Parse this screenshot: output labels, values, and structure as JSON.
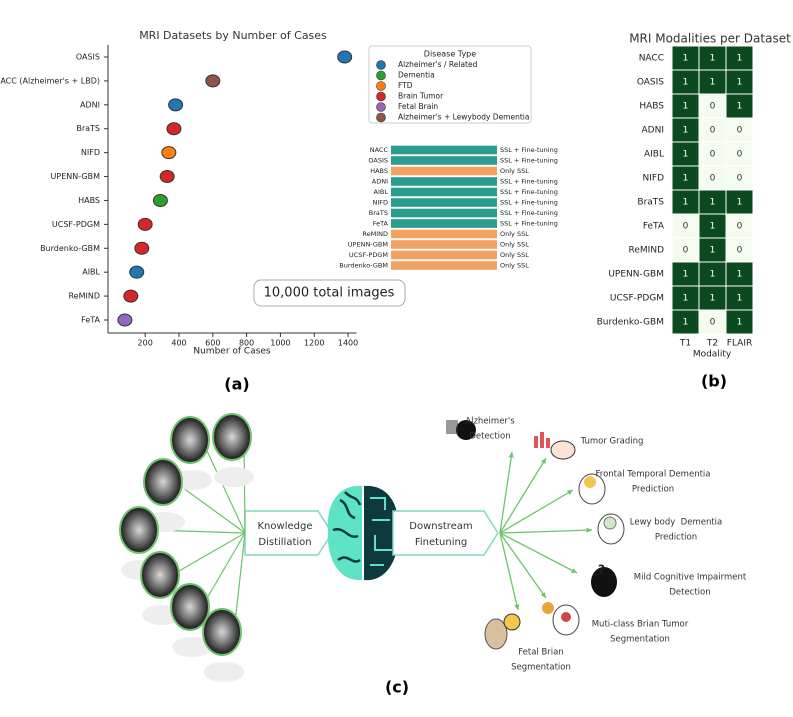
{
  "panel_labels": [
    "(a)",
    "(b)",
    "(c)"
  ],
  "chart_data": [
    {
      "type": "dot",
      "title": "MRI Datasets by Number of Cases",
      "x_label": "Number of Cases",
      "categories": [
        "OASIS",
        "NACC (Alzheimer's + LBD)",
        "ADNI",
        "BraTS",
        "NIFD",
        "UPENN-GBM",
        "HABS",
        "UCSF-PDGM",
        "Burdenko-GBM",
        "AIBL",
        "ReMIND",
        "FeTA"
      ],
      "values": [
        1380,
        600,
        380,
        370,
        340,
        330,
        290,
        200,
        180,
        150,
        115,
        80
      ],
      "colors": [
        "#1f77b4",
        "#8c564b",
        "#1f77b4",
        "#d62728",
        "#ff7f0e",
        "#d62728",
        "#2ca02c",
        "#d62728",
        "#d62728",
        "#1f77b4",
        "#d62728",
        "#9467bd"
      ],
      "xlim": [
        -20,
        1450
      ],
      "xticks": [
        200,
        400,
        600,
        800,
        1000,
        1200,
        1400
      ],
      "legend_title": "Disease Type",
      "legend": [
        {
          "name": "Alzheimer's / Related",
          "color": "#1f77b4"
        },
        {
          "name": "Dementia",
          "color": "#2ca02c"
        },
        {
          "name": "FTD",
          "color": "#ff7f0e"
        },
        {
          "name": "Brain Tumor",
          "color": "#d62728"
        },
        {
          "name": "Fetal Brain",
          "color": "#9467bd"
        },
        {
          "name": "Alzheimer's + Lewybody Dementia",
          "color": "#8c564b"
        }
      ],
      "annotation": "10,000 total images"
    },
    {
      "type": "heatmap",
      "title": "MRI Modalities per Dataset",
      "x_label": "Modality",
      "x": [
        "T1",
        "T2",
        "FLAIR"
      ],
      "categories": [
        "NACC",
        "OASIS",
        "HABS",
        "ADNI",
        "AIBL",
        "NIFD",
        "BraTS",
        "FeTA",
        "ReMIND",
        "UPENN-GBM",
        "UCSF-PDGM",
        "Burdenko-GBM"
      ],
      "values": [
        [
          1,
          1,
          1
        ],
        [
          1,
          1,
          1
        ],
        [
          1,
          0,
          1
        ],
        [
          1,
          0,
          0
        ],
        [
          1,
          0,
          0
        ],
        [
          1,
          0,
          0
        ],
        [
          1,
          1,
          1
        ],
        [
          0,
          1,
          0
        ],
        [
          0,
          1,
          0
        ],
        [
          1,
          1,
          1
        ],
        [
          1,
          1,
          1
        ],
        [
          1,
          0,
          1
        ]
      ],
      "high_color": "#0b4a1f",
      "low_color": "#f4fbf1"
    }
  ],
  "training_modes": {
    "rows": [
      {
        "dataset": "NACC",
        "mode": "SSL + Fine-tuning",
        "color": "#2a9d8f"
      },
      {
        "dataset": "OASIS",
        "mode": "SSL + Fine-tuning",
        "color": "#2a9d8f"
      },
      {
        "dataset": "HABS",
        "mode": "Only SSL",
        "color": "#f4a261"
      },
      {
        "dataset": "ADNI",
        "mode": "SSL + Fine-tuning",
        "color": "#2a9d8f"
      },
      {
        "dataset": "AIBL",
        "mode": "SSL + Fine-tuning",
        "color": "#2a9d8f"
      },
      {
        "dataset": "NIFD",
        "mode": "SSL + Fine-tuning",
        "color": "#2a9d8f"
      },
      {
        "dataset": "BraTS",
        "mode": "SSL + Fine-tuning",
        "color": "#2a9d8f"
      },
      {
        "dataset": "FeTA",
        "mode": "SSL + Fine-tuning",
        "color": "#2a9d8f"
      },
      {
        "dataset": "ReMIND",
        "mode": "Only SSL",
        "color": "#f4a261"
      },
      {
        "dataset": "UPENN-GBM",
        "mode": "Only SSL",
        "color": "#f4a261"
      },
      {
        "dataset": "UCSF-PDGM",
        "mode": "Only SSL",
        "color": "#f4a261"
      },
      {
        "dataset": "Burdenko-GBM",
        "mode": "Only SSL",
        "color": "#f4a261"
      }
    ]
  },
  "diagram": {
    "distill": [
      "Knowledge",
      "Distillation"
    ],
    "finetune": [
      "Downstream",
      "Finetuning"
    ],
    "tasks": [
      {
        "label": [
          "Alzheimer's",
          "Detection"
        ]
      },
      {
        "label": [
          "Tumor Grading"
        ]
      },
      {
        "label": [
          "Frontal Temporal Dementia",
          "Prediction"
        ]
      },
      {
        "label": [
          "Lewy body  Dementia",
          "Prediction"
        ]
      },
      {
        "label": [
          "Mild Cognitive Impairment",
          "Detection"
        ]
      },
      {
        "label": [
          "Muti-class Brian Tumor",
          "Segmentation"
        ]
      },
      {
        "label": [
          "Fetal Brian",
          "Segmentation"
        ]
      }
    ]
  }
}
